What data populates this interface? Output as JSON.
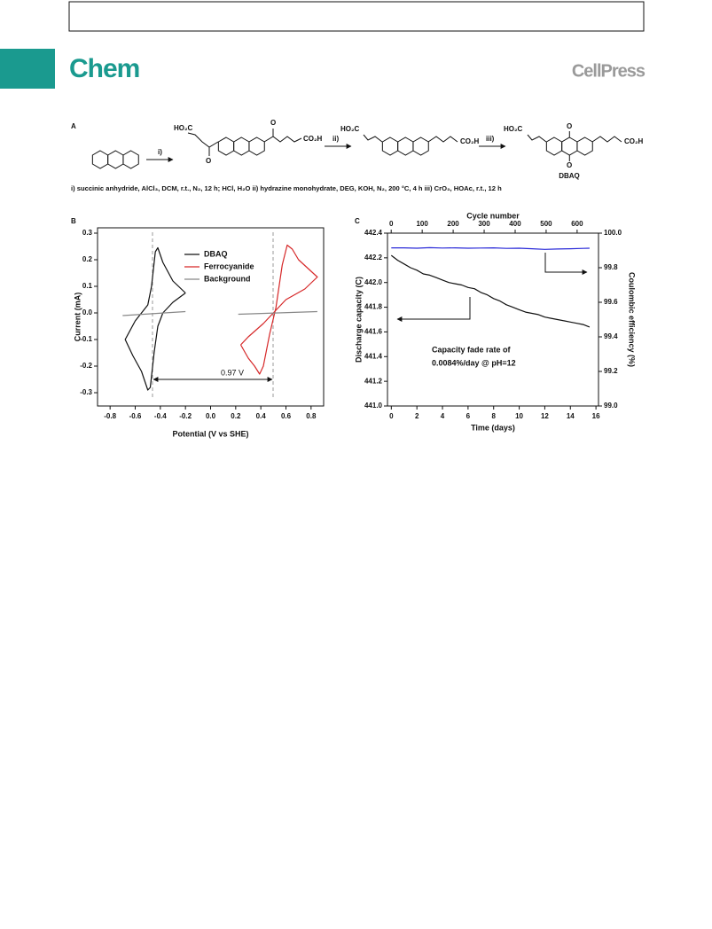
{
  "header": {
    "journal": "Chem",
    "publisher": "CellPress"
  },
  "scheme": {
    "panel": "A",
    "steps": [
      "i)",
      "ii)",
      "iii)"
    ],
    "left_group": "HO₂C",
    "right_group": "CO₂H",
    "oxygen": "O",
    "product": "DBAQ",
    "caption": "i) succinic anhydride, AlCl₃, DCM, r.t., N₂, 12 h; HCl, H₂O ii) hydrazine monohydrate, DEG, KOH, N₂, 200 °C, 4 h iii) CrO₃, HOAc, r.t., 12 h"
  },
  "chart_data": [
    {
      "type": "line",
      "panel": "B",
      "xlabel": "Potential (V vs SHE)",
      "ylabel": "Current (mA)",
      "xlim": [
        -0.9,
        0.9
      ],
      "ylim": [
        -0.35,
        0.32
      ],
      "xticks": [
        -0.8,
        -0.6,
        -0.4,
        -0.2,
        {
          "value": 0,
          "label": "0.0"
        },
        0.2,
        0.4,
        0.6,
        0.8
      ],
      "yticks": [
        -0.3,
        -0.2,
        -0.1,
        {
          "value": 0,
          "label": "0.0"
        },
        0.1,
        0.2,
        0.3
      ],
      "legend": "upper center",
      "annotation": "0.97 V",
      "series": [
        {
          "name": "DBAQ",
          "color": "#111111",
          "x": [
            -0.2,
            -0.3,
            -0.38,
            -0.42,
            -0.44,
            -0.47,
            -0.5,
            -0.55,
            -0.6,
            -0.68,
            -0.62,
            -0.55,
            -0.5,
            -0.48,
            -0.45,
            -0.42,
            -0.38,
            -0.3,
            -0.2
          ],
          "values": [
            0.075,
            0.12,
            0.19,
            0.245,
            0.23,
            0.1,
            0.03,
            0.0,
            -0.03,
            -0.1,
            -0.16,
            -0.22,
            -0.29,
            -0.28,
            -0.15,
            -0.05,
            0.0,
            0.04,
            0.075
          ]
        },
        {
          "name": "Ferrocyanide",
          "color": "#d62728",
          "x": [
            0.24,
            0.3,
            0.35,
            0.39,
            0.42,
            0.47,
            0.52,
            0.57,
            0.61,
            0.65,
            0.7,
            0.85,
            0.75,
            0.6,
            0.5,
            0.42,
            0.3,
            0.24
          ],
          "values": [
            -0.12,
            -0.17,
            -0.2,
            -0.23,
            -0.2,
            -0.08,
            0.02,
            0.18,
            0.255,
            0.24,
            0.2,
            0.135,
            0.09,
            0.05,
            0.0,
            -0.04,
            -0.09,
            -0.12
          ]
        },
        {
          "name": "Background",
          "color": "#888888",
          "x": [
            -0.7,
            -0.2,
            0,
            0.22,
            0.85
          ],
          "values": [
            -0.01,
            0.005,
            null,
            -0.005,
            0.005
          ]
        }
      ]
    },
    {
      "type": "line",
      "panel": "C",
      "xlabel": "Time (days)",
      "x2label": "Cycle number",
      "ylabel": "Discharge capacity (C)",
      "y2label": "Coulombic efficiency (%)",
      "xlim": [
        -0.3,
        16.2
      ],
      "x2lim": [
        -12,
        669
      ],
      "ylim": [
        441.0,
        442.4
      ],
      "y2lim": [
        99.0,
        100.0
      ],
      "xticks": [
        0,
        2,
        4,
        6,
        8,
        10,
        12,
        14,
        16
      ],
      "x2ticks": [
        0,
        100,
        200,
        300,
        400,
        500,
        600
      ],
      "yticks": [
        {
          "value": 441,
          "label": "441.0"
        },
        441.2,
        441.4,
        441.6,
        441.8,
        {
          "value": 442,
          "label": "442.0"
        },
        442.2,
        442.4
      ],
      "y2ticks": [
        {
          "value": 99,
          "label": "99.0"
        },
        99.2,
        99.4,
        99.6,
        99.8,
        {
          "value": 100,
          "label": "100.0"
        }
      ],
      "annotations": [
        "Capacity fade rate of",
        "0.0084%/day @ pH=12"
      ],
      "series": [
        {
          "color": "#111111",
          "x": [
            0,
            0.5,
            1,
            1.5,
            2,
            2.5,
            3,
            3.5,
            4,
            4.5,
            5,
            5.5,
            6,
            6.5,
            7,
            7.5,
            8,
            8.5,
            9,
            9.5,
            10,
            10.5,
            11,
            11.5,
            12,
            12.5,
            13,
            13.5,
            14,
            14.5,
            15,
            15.5
          ],
          "values": [
            442.22,
            442.18,
            442.15,
            442.12,
            442.1,
            442.07,
            442.06,
            442.04,
            442.02,
            442.0,
            441.99,
            441.98,
            441.96,
            441.95,
            441.92,
            441.9,
            441.87,
            441.85,
            441.82,
            441.8,
            441.78,
            441.76,
            441.75,
            441.74,
            441.72,
            441.71,
            441.7,
            441.69,
            441.68,
            441.67,
            441.66,
            441.64
          ]
        },
        {
          "color": "#2a2ad8",
          "axis": "y2",
          "x": [
            0,
            1,
            2,
            3,
            4,
            5,
            6,
            7,
            8,
            9,
            10,
            11,
            12,
            13,
            14,
            15,
            15.5
          ],
          "values": [
            99.915,
            99.915,
            99.913,
            99.916,
            99.914,
            99.915,
            99.913,
            99.914,
            99.915,
            99.912,
            99.913,
            99.91,
            99.906,
            99.908,
            99.91,
            99.912,
            99.913
          ]
        }
      ]
    }
  ]
}
